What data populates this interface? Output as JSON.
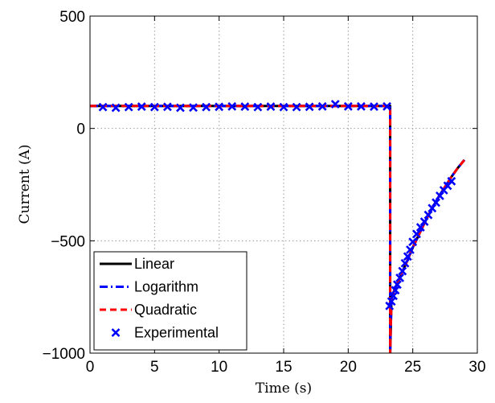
{
  "chart_data": {
    "type": "line",
    "title": "",
    "xlabel": "Time (s)",
    "ylabel": "Current (A)",
    "xlim": [
      0,
      30
    ],
    "ylim": [
      -1000,
      500
    ],
    "x_ticks": [
      0,
      5,
      10,
      15,
      20,
      25,
      30
    ],
    "x_tick_labels": [
      "0",
      "5",
      "10",
      "15",
      "20",
      "25",
      "30"
    ],
    "y_ticks": [
      -1000,
      -500,
      0,
      500
    ],
    "y_tick_labels": [
      "−1000",
      "−500",
      "0",
      "500"
    ],
    "grid": true,
    "legend_position": "bottom-left",
    "series": [
      {
        "name": "Linear",
        "style": "solid",
        "color": "#000000",
        "x": [
          0,
          23.0,
          23.25,
          23.25,
          23.35,
          23.45,
          23.6,
          23.8,
          24.0,
          24.3,
          24.6,
          25.0,
          25.5,
          26.0,
          26.5,
          27.0,
          27.5,
          28.0,
          28.5,
          29.0
        ],
        "y": [
          100,
          100,
          100,
          -1000,
          -760,
          -740,
          -715,
          -690,
          -665,
          -625,
          -585,
          -530,
          -470,
          -410,
          -355,
          -305,
          -260,
          -215,
          -175,
          -140
        ]
      },
      {
        "name": "Logarithm",
        "style": "dashdot",
        "color": "#0000ff",
        "x": [
          0,
          23.0,
          23.25,
          23.25,
          23.35,
          23.45,
          23.6,
          23.8,
          24.0,
          24.3,
          24.6,
          25.0,
          25.5,
          26.0,
          26.5,
          27.0,
          27.5,
          28.0,
          28.5,
          29.0
        ],
        "y": [
          100,
          100,
          100,
          -1000,
          -760,
          -740,
          -715,
          -690,
          -665,
          -625,
          -585,
          -530,
          -470,
          -410,
          -355,
          -305,
          -260,
          -215,
          -175,
          -140
        ]
      },
      {
        "name": "Quadratic",
        "style": "dashed",
        "color": "#ff0000",
        "x": [
          0,
          23.0,
          23.25,
          23.25,
          23.35,
          23.45,
          23.6,
          23.8,
          24.0,
          24.3,
          24.6,
          25.0,
          25.5,
          26.0,
          26.5,
          27.0,
          27.5,
          28.0,
          28.5,
          29.0
        ],
        "y": [
          100,
          100,
          100,
          -1000,
          -760,
          -740,
          -715,
          -690,
          -665,
          -625,
          -585,
          -530,
          -470,
          -410,
          -355,
          -305,
          -260,
          -215,
          -175,
          -140
        ]
      },
      {
        "name": "Experimental",
        "style": "markers-x",
        "color": "#0000ff",
        "x": [
          1,
          2,
          3,
          4,
          5,
          6,
          7,
          8,
          9,
          10,
          11,
          12,
          13,
          14,
          15,
          16,
          17,
          18,
          19,
          20,
          21,
          22,
          23,
          23.2,
          23.35,
          23.5,
          23.65,
          23.8,
          24.0,
          24.2,
          24.4,
          24.6,
          24.8,
          25.0,
          25.3,
          25.6,
          25.9,
          26.2,
          26.5,
          26.8,
          27.1,
          27.4,
          27.7,
          28.0
        ],
        "y": [
          95,
          92,
          95,
          97,
          95,
          96,
          92,
          93,
          95,
          96,
          98,
          97,
          95,
          97,
          95,
          95,
          96,
          98,
          108,
          98,
          98,
          97,
          98,
          -790,
          -770,
          -745,
          -720,
          -695,
          -665,
          -635,
          -600,
          -570,
          -540,
          -505,
          -470,
          -440,
          -415,
          -385,
          -355,
          -330,
          -300,
          -275,
          -255,
          -235
        ]
      }
    ]
  }
}
